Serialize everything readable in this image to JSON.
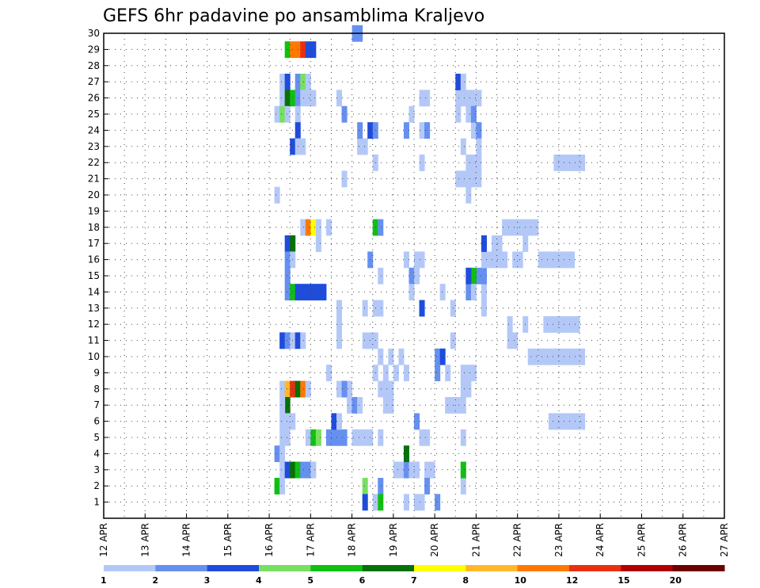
{
  "chart_data": {
    "type": "heatmap",
    "title": "GEFS 6hr padavine po ansamblima Kraljevo",
    "xlabel": "",
    "ylabel": "",
    "x_ticks": [
      "12 APR",
      "13 APR",
      "14 APR",
      "15 APR",
      "16 APR",
      "17 APR",
      "18 APR",
      "19 APR",
      "20 APR",
      "21 APR",
      "22 APR",
      "23 APR",
      "24 APR",
      "25 APR",
      "26 APR",
      "27 APR"
    ],
    "y_ticks": [
      "1",
      "2",
      "3",
      "4",
      "5",
      "6",
      "7",
      "8",
      "9",
      "10",
      "11",
      "12",
      "13",
      "14",
      "15",
      "16",
      "17",
      "18",
      "19",
      "20",
      "21",
      "22",
      "23",
      "24",
      "25",
      "26",
      "27",
      "28",
      "29",
      "30"
    ],
    "x_range": [
      0,
      60
    ],
    "y_range": [
      0,
      30
    ],
    "grid": true,
    "colorbar": {
      "labels": [
        "1",
        "2",
        "3",
        "4",
        "5",
        "6",
        "7",
        "8",
        "10",
        "12",
        "15",
        "20"
      ],
      "colors": [
        "#b4c8f8",
        "#6690f0",
        "#1e4cdc",
        "#78e060",
        "#10c010",
        "#087008",
        "#ffff00",
        "#ffb828",
        "#ff7800",
        "#e83010",
        "#b00000",
        "#6c0000"
      ]
    },
    "cells": [
      [
        17.5,
        29,
        5
      ],
      [
        18.0,
        29,
        9
      ],
      [
        18.5,
        29,
        9
      ],
      [
        19.0,
        29,
        10
      ],
      [
        19.5,
        29,
        3
      ],
      [
        20.0,
        29,
        3
      ],
      [
        17.0,
        27,
        1
      ],
      [
        17.5,
        27,
        3
      ],
      [
        18.5,
        27,
        2
      ],
      [
        19.0,
        27,
        4
      ],
      [
        19.5,
        27,
        1
      ],
      [
        17.0,
        26,
        1
      ],
      [
        17.5,
        26,
        6
      ],
      [
        18.0,
        26,
        5
      ],
      [
        18.5,
        26,
        2
      ],
      [
        19.0,
        26,
        1
      ],
      [
        19.5,
        26,
        1
      ],
      [
        20.0,
        26,
        1
      ],
      [
        16.5,
        25,
        1
      ],
      [
        17.0,
        25,
        4
      ],
      [
        17.5,
        25,
        1
      ],
      [
        18.5,
        25,
        1
      ],
      [
        18.5,
        24,
        3
      ],
      [
        18.0,
        23,
        3
      ],
      [
        18.5,
        23,
        1
      ],
      [
        19.0,
        23,
        1
      ],
      [
        16.5,
        20,
        1
      ],
      [
        19.0,
        18,
        1
      ],
      [
        19.5,
        18,
        9
      ],
      [
        20.0,
        18,
        7
      ],
      [
        20.5,
        18,
        1
      ],
      [
        21.5,
        18,
        1
      ],
      [
        20.5,
        17,
        1
      ],
      [
        17.5,
        17,
        3
      ],
      [
        18.0,
        17,
        6
      ],
      [
        17.5,
        16,
        2
      ],
      [
        18.0,
        16,
        1
      ],
      [
        17.5,
        15,
        2
      ],
      [
        17.5,
        14,
        2
      ],
      [
        18.0,
        14,
        5
      ],
      [
        18.5,
        14,
        3
      ],
      [
        19.0,
        14,
        3
      ],
      [
        19.5,
        14,
        3
      ],
      [
        20.0,
        14,
        3
      ],
      [
        20.5,
        14,
        3
      ],
      [
        21.0,
        14,
        3
      ],
      [
        17.0,
        11,
        3
      ],
      [
        17.5,
        11,
        2
      ],
      [
        18.0,
        11,
        1
      ],
      [
        18.5,
        11,
        3
      ],
      [
        19.0,
        11,
        1
      ],
      [
        21.5,
        9,
        1
      ],
      [
        17.0,
        8,
        1
      ],
      [
        17.5,
        8,
        8
      ],
      [
        18.0,
        8,
        10
      ],
      [
        18.5,
        8,
        6
      ],
      [
        19.0,
        8,
        9
      ],
      [
        19.5,
        8,
        1
      ],
      [
        17.5,
        7,
        6
      ],
      [
        17.0,
        7,
        1
      ],
      [
        17.5,
        6,
        1
      ],
      [
        18.0,
        6,
        1
      ],
      [
        17.0,
        6,
        1
      ],
      [
        17.0,
        5,
        1
      ],
      [
        17.5,
        5,
        1
      ],
      [
        19.5,
        5,
        1
      ],
      [
        20.0,
        5,
        5
      ],
      [
        20.5,
        5,
        4
      ],
      [
        16.5,
        4,
        2
      ],
      [
        17.0,
        4,
        1
      ],
      [
        17.0,
        3,
        1
      ],
      [
        17.5,
        3,
        3
      ],
      [
        18.0,
        3,
        6
      ],
      [
        18.5,
        3,
        5
      ],
      [
        19.0,
        3,
        2
      ],
      [
        19.5,
        3,
        2
      ],
      [
        20.0,
        3,
        1
      ],
      [
        16.5,
        2,
        5
      ],
      [
        17.0,
        2,
        1
      ],
      [
        22.5,
        26,
        1
      ],
      [
        23.0,
        25,
        2
      ],
      [
        23.0,
        21,
        1
      ],
      [
        22.5,
        13,
        1
      ],
      [
        22.5,
        11,
        1
      ],
      [
        22.5,
        12,
        1
      ],
      [
        23.0,
        8,
        2
      ],
      [
        23.5,
        8,
        1
      ],
      [
        21.5,
        5,
        2
      ],
      [
        22.0,
        5,
        2
      ],
      [
        23.0,
        5,
        2
      ],
      [
        22.5,
        5,
        2
      ],
      [
        22.0,
        6,
        3
      ],
      [
        22.5,
        6,
        1
      ],
      [
        23.5,
        7,
        1
      ],
      [
        24.0,
        7,
        2
      ],
      [
        24.5,
        7,
        1
      ],
      [
        22.5,
        8,
        1
      ],
      [
        23.0,
        8,
        2
      ],
      [
        24.0,
        5,
        1
      ],
      [
        24.5,
        5,
        1
      ],
      [
        24.0,
        30,
        2
      ],
      [
        24.5,
        30,
        2
      ],
      [
        24.5,
        23,
        1
      ],
      [
        24.5,
        24,
        2
      ],
      [
        25.0,
        23,
        1
      ],
      [
        25.5,
        24,
        3
      ],
      [
        26.0,
        24,
        2
      ],
      [
        26.0,
        22,
        1
      ],
      [
        25.5,
        16,
        2
      ],
      [
        26.0,
        18,
        5
      ],
      [
        26.5,
        18,
        2
      ],
      [
        26.5,
        15,
        1
      ],
      [
        25.0,
        13,
        1
      ],
      [
        26.0,
        13,
        1
      ],
      [
        26.5,
        13,
        1
      ],
      [
        25.0,
        11,
        1
      ],
      [
        25.5,
        11,
        1
      ],
      [
        26.0,
        11,
        1
      ],
      [
        26.5,
        10,
        1
      ],
      [
        26.0,
        9,
        1
      ],
      [
        27.0,
        9,
        1
      ],
      [
        26.5,
        8,
        1
      ],
      [
        27.0,
        8,
        1
      ],
      [
        27.5,
        8,
        1
      ],
      [
        27.0,
        7,
        1
      ],
      [
        27.5,
        7,
        1
      ],
      [
        26.5,
        5,
        1
      ],
      [
        25.0,
        5,
        1
      ],
      [
        25.5,
        5,
        1
      ],
      [
        25.0,
        2,
        4
      ],
      [
        26.5,
        2,
        2
      ],
      [
        25.0,
        1,
        3
      ],
      [
        26.0,
        1,
        1
      ],
      [
        26.5,
        1,
        5
      ],
      [
        27.5,
        10,
        1
      ],
      [
        28.5,
        10,
        1
      ],
      [
        28.0,
        9,
        1
      ],
      [
        29.0,
        9,
        1
      ],
      [
        29.0,
        1,
        1
      ],
      [
        30.0,
        1,
        1
      ],
      [
        30.5,
        1,
        1
      ],
      [
        30.0,
        3,
        1
      ],
      [
        28.0,
        3,
        1
      ],
      [
        28.5,
        3,
        1
      ],
      [
        29.0,
        3,
        2
      ],
      [
        29.5,
        3,
        1
      ],
      [
        29.0,
        4,
        6
      ],
      [
        30.0,
        6,
        2
      ],
      [
        31.0,
        3,
        1
      ],
      [
        31.5,
        3,
        1
      ],
      [
        30.5,
        5,
        1
      ],
      [
        31.0,
        5,
        1
      ],
      [
        29.5,
        15,
        2
      ],
      [
        29.0,
        16,
        1
      ],
      [
        30.0,
        16,
        1
      ],
      [
        29.0,
        24,
        2
      ],
      [
        29.5,
        25,
        1
      ],
      [
        30.5,
        16,
        1
      ],
      [
        30.0,
        15,
        1
      ],
      [
        29.5,
        14,
        1
      ],
      [
        30.5,
        24,
        1
      ],
      [
        31.0,
        24,
        2
      ],
      [
        30.5,
        26,
        1
      ],
      [
        31.0,
        26,
        1
      ],
      [
        30.5,
        22,
        1
      ],
      [
        31.0,
        2,
        2
      ],
      [
        30.5,
        13,
        3
      ],
      [
        32.0,
        1,
        2
      ],
      [
        32.5,
        14,
        1
      ],
      [
        32.0,
        10,
        2
      ],
      [
        32.5,
        10,
        3
      ],
      [
        33.5,
        13,
        1
      ],
      [
        32.0,
        9,
        2
      ],
      [
        33.5,
        11,
        1
      ],
      [
        33.0,
        9,
        1
      ],
      [
        33.5,
        7,
        1
      ],
      [
        33.0,
        7,
        1
      ],
      [
        34.0,
        7,
        1
      ],
      [
        34.0,
        26,
        1
      ],
      [
        34.0,
        27,
        3
      ],
      [
        34.5,
        2,
        1
      ],
      [
        34.5,
        3,
        5
      ],
      [
        34.5,
        5,
        1
      ],
      [
        34.5,
        7,
        1
      ],
      [
        34.5,
        8,
        1
      ],
      [
        34.5,
        9,
        1
      ],
      [
        35.0,
        9,
        1
      ],
      [
        35.5,
        9,
        1
      ],
      [
        35.0,
        8,
        1
      ],
      [
        34.0,
        25,
        1
      ],
      [
        35.0,
        25,
        1
      ],
      [
        35.5,
        24,
        1
      ],
      [
        34.5,
        23,
        1
      ],
      [
        35.0,
        22,
        1
      ],
      [
        35.5,
        22,
        1
      ],
      [
        36.0,
        22,
        1
      ],
      [
        34.5,
        26,
        1
      ],
      [
        35.0,
        26,
        1
      ],
      [
        35.5,
        26,
        1
      ],
      [
        36.0,
        26,
        1
      ],
      [
        34.5,
        27,
        1
      ],
      [
        35.5,
        25,
        2
      ],
      [
        36.0,
        24,
        2
      ],
      [
        36.0,
        23,
        1
      ],
      [
        36.0,
        21,
        1
      ],
      [
        35.5,
        21,
        1
      ],
      [
        35.0,
        21,
        1
      ],
      [
        34.5,
        21,
        1
      ],
      [
        34.0,
        21,
        1
      ],
      [
        35.0,
        20,
        1
      ],
      [
        36.5,
        14,
        1
      ],
      [
        36.5,
        13,
        1
      ],
      [
        36.0,
        15,
        2
      ],
      [
        36.5,
        15,
        2
      ],
      [
        35.5,
        15,
        5
      ],
      [
        35.0,
        14,
        2
      ],
      [
        35.5,
        14,
        1
      ],
      [
        35.0,
        15,
        3
      ],
      [
        36.5,
        16,
        1
      ],
      [
        37.0,
        16,
        1
      ],
      [
        37.5,
        16,
        1
      ],
      [
        38.0,
        16,
        1
      ],
      [
        38.5,
        16,
        1
      ],
      [
        36.5,
        17,
        3
      ],
      [
        37.5,
        17,
        1
      ],
      [
        38.0,
        17,
        1
      ],
      [
        39.0,
        11,
        1
      ],
      [
        39.5,
        11,
        1
      ],
      [
        39.0,
        12,
        1
      ],
      [
        40.5,
        12,
        1
      ],
      [
        39.5,
        16,
        1
      ],
      [
        40.0,
        16,
        1
      ],
      [
        40.5,
        17,
        1
      ],
      [
        38.5,
        18,
        1
      ],
      [
        39.0,
        18,
        1
      ],
      [
        39.5,
        18,
        1
      ],
      [
        40.0,
        18,
        1
      ],
      [
        40.5,
        18,
        1
      ],
      [
        41.0,
        18,
        1
      ],
      [
        41.5,
        18,
        1
      ],
      [
        42.0,
        16,
        1
      ],
      [
        42.5,
        16,
        1
      ],
      [
        43.0,
        16,
        1
      ],
      [
        43.5,
        16,
        1
      ],
      [
        44.0,
        16,
        1
      ],
      [
        44.5,
        16,
        1
      ],
      [
        45.0,
        16,
        1
      ],
      [
        42.5,
        12,
        1
      ],
      [
        43.0,
        12,
        1
      ],
      [
        43.5,
        12,
        1
      ],
      [
        44.0,
        12,
        1
      ],
      [
        44.5,
        12,
        1
      ],
      [
        45.0,
        12,
        1
      ],
      [
        45.5,
        12,
        1
      ],
      [
        43.0,
        6,
        1
      ],
      [
        43.5,
        6,
        1
      ],
      [
        44.0,
        6,
        1
      ],
      [
        44.5,
        6,
        1
      ],
      [
        45.0,
        6,
        1
      ],
      [
        45.5,
        6,
        1
      ],
      [
        46.0,
        6,
        1
      ],
      [
        43.5,
        22,
        1
      ],
      [
        44.0,
        22,
        1
      ],
      [
        44.5,
        22,
        1
      ],
      [
        45.0,
        22,
        1
      ],
      [
        45.5,
        22,
        1
      ],
      [
        46.0,
        22,
        1
      ],
      [
        41.0,
        10,
        1
      ],
      [
        41.5,
        10,
        1
      ],
      [
        42.0,
        10,
        1
      ],
      [
        42.5,
        10,
        1
      ],
      [
        43.0,
        10,
        1
      ],
      [
        43.5,
        10,
        1
      ],
      [
        44.0,
        10,
        1
      ],
      [
        44.5,
        10,
        1
      ],
      [
        45.0,
        10,
        1
      ],
      [
        45.5,
        10,
        1
      ],
      [
        46.0,
        10,
        1
      ]
    ]
  }
}
